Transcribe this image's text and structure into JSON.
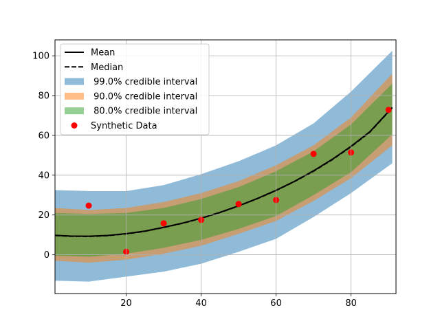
{
  "chart_data": {
    "type": "line",
    "title": "",
    "xlabel": "",
    "ylabel": "",
    "xlim": [
      1,
      92
    ],
    "ylim": [
      -19.5,
      108
    ],
    "grid": true,
    "legend_placement": "top-left",
    "x_ticks": [
      20,
      40,
      60,
      80
    ],
    "y_ticks": [
      0,
      20,
      40,
      60,
      80,
      100
    ],
    "bands": [
      {
        "name": " 99.0% credible interval",
        "color": "#1f77b4",
        "opacity": 0.5,
        "x": [
          1,
          10,
          20,
          30,
          40,
          50,
          60,
          70,
          80,
          91
        ],
        "lower": [
          -13,
          -13.5,
          -11,
          -8.5,
          -4.5,
          1.5,
          8,
          19,
          31,
          46
        ],
        "upper": [
          32.5,
          32,
          32,
          35,
          40.5,
          47,
          55,
          66,
          82,
          102.5
        ]
      },
      {
        "name": " 90.0% credible interval",
        "color": "#ff7f0e",
        "opacity": 0.5,
        "x": [
          1,
          10,
          20,
          30,
          40,
          50,
          60,
          70,
          80,
          91
        ],
        "lower": [
          -3,
          -4,
          -2.5,
          0.5,
          4.5,
          10.5,
          17,
          27,
          38.5,
          55
        ],
        "upper": [
          23.5,
          22.5,
          23.5,
          26.5,
          31,
          37,
          45,
          55,
          69,
          91
        ]
      },
      {
        "name": " 80.0% credible interval",
        "color": "#2ca02c",
        "opacity": 0.5,
        "x": [
          1,
          10,
          20,
          30,
          40,
          50,
          60,
          70,
          80,
          91
        ],
        "lower": [
          -0.5,
          -1,
          0.5,
          3.5,
          7.5,
          13,
          19.5,
          30,
          41.5,
          60.5
        ],
        "upper": [
          21,
          20.5,
          21,
          23.5,
          28,
          34,
          42,
          52,
          65.5,
          86
        ]
      }
    ],
    "series": [
      {
        "name": "Mean",
        "style": "solid",
        "color": "#000000",
        "x": [
          1,
          5,
          10,
          15,
          20,
          25,
          30,
          35,
          40,
          45,
          50,
          55,
          60,
          65,
          70,
          75,
          80,
          85,
          91
        ],
        "values": [
          9.8,
          9.4,
          9.3,
          9.7,
          10.6,
          11.9,
          13.8,
          15.9,
          18.4,
          21.3,
          24.6,
          28.3,
          32.4,
          37.0,
          42.2,
          48.0,
          54.5,
          61.8,
          74.0
        ]
      },
      {
        "name": "Median",
        "style": "dashed",
        "color": "#000000",
        "x": [
          1,
          5,
          10,
          15,
          20,
          25,
          30,
          35,
          40,
          45,
          50,
          55,
          60,
          65,
          70,
          75,
          80,
          85,
          91
        ],
        "values": [
          9.7,
          9.3,
          9.2,
          9.6,
          10.5,
          11.8,
          13.7,
          15.8,
          18.3,
          21.2,
          24.5,
          28.2,
          32.3,
          36.9,
          42.0,
          47.8,
          54.3,
          61.6,
          73.8
        ]
      }
    ],
    "scatter": {
      "name": "Synthetic Data",
      "color": "#ff0000",
      "x": [
        10,
        20,
        30,
        40,
        50,
        60,
        70,
        80,
        90
      ],
      "y": [
        24.7,
        1.5,
        15.8,
        17.5,
        25.5,
        27.5,
        50.7,
        51.4,
        72.8
      ]
    },
    "legend": [
      "Mean",
      "Median",
      " 99.0% credible interval",
      " 90.0% credible interval",
      " 80.0% credible interval",
      "Synthetic Data"
    ]
  }
}
